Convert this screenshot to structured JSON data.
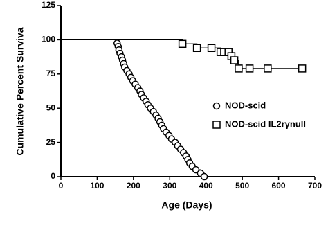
{
  "chart_data": {
    "type": "survival",
    "xlabel": "Age (Days)",
    "ylabel": "Cumulative Percent Surviva",
    "xlim": [
      0,
      700
    ],
    "xticks": [
      0,
      100,
      200,
      300,
      400,
      500,
      600,
      700
    ],
    "ylim": [
      0,
      125
    ],
    "yticks": [
      0,
      25,
      50,
      75,
      100,
      125
    ],
    "series": [
      {
        "name": "NOD-scid",
        "marker": "circle",
        "color": "#000000",
        "x": [
          0,
          155,
          158,
          160,
          163,
          167,
          170,
          173,
          176,
          182,
          188,
          193,
          198,
          205,
          212,
          218,
          222,
          228,
          235,
          240,
          247,
          255,
          262,
          268,
          273,
          278,
          283,
          290,
          298,
          305,
          315,
          322,
          330,
          338,
          345,
          350,
          355,
          362,
          372,
          385,
          395
        ],
        "values": [
          100,
          97.5,
          95,
          92.5,
          90,
          87.5,
          85,
          82.5,
          80,
          77.5,
          75,
          72.5,
          70,
          67.5,
          65,
          62.5,
          60,
          57.5,
          55,
          52.5,
          50,
          47.5,
          45,
          42.5,
          40,
          37.5,
          35,
          32.5,
          30,
          27.5,
          25,
          22.5,
          20,
          17.5,
          15,
          12.5,
          10,
          7.5,
          5,
          2.5,
          0
        ]
      },
      {
        "name": "NOD-scid IL2rγnull",
        "marker": "square",
        "color": "#000000",
        "x": [
          0,
          335,
          375,
          415,
          440,
          450,
          462,
          470,
          478,
          490,
          520,
          570,
          665
        ],
        "values": [
          100,
          97,
          94,
          94,
          91,
          91,
          91,
          88,
          85,
          79,
          79,
          79,
          79
        ]
      }
    ]
  }
}
